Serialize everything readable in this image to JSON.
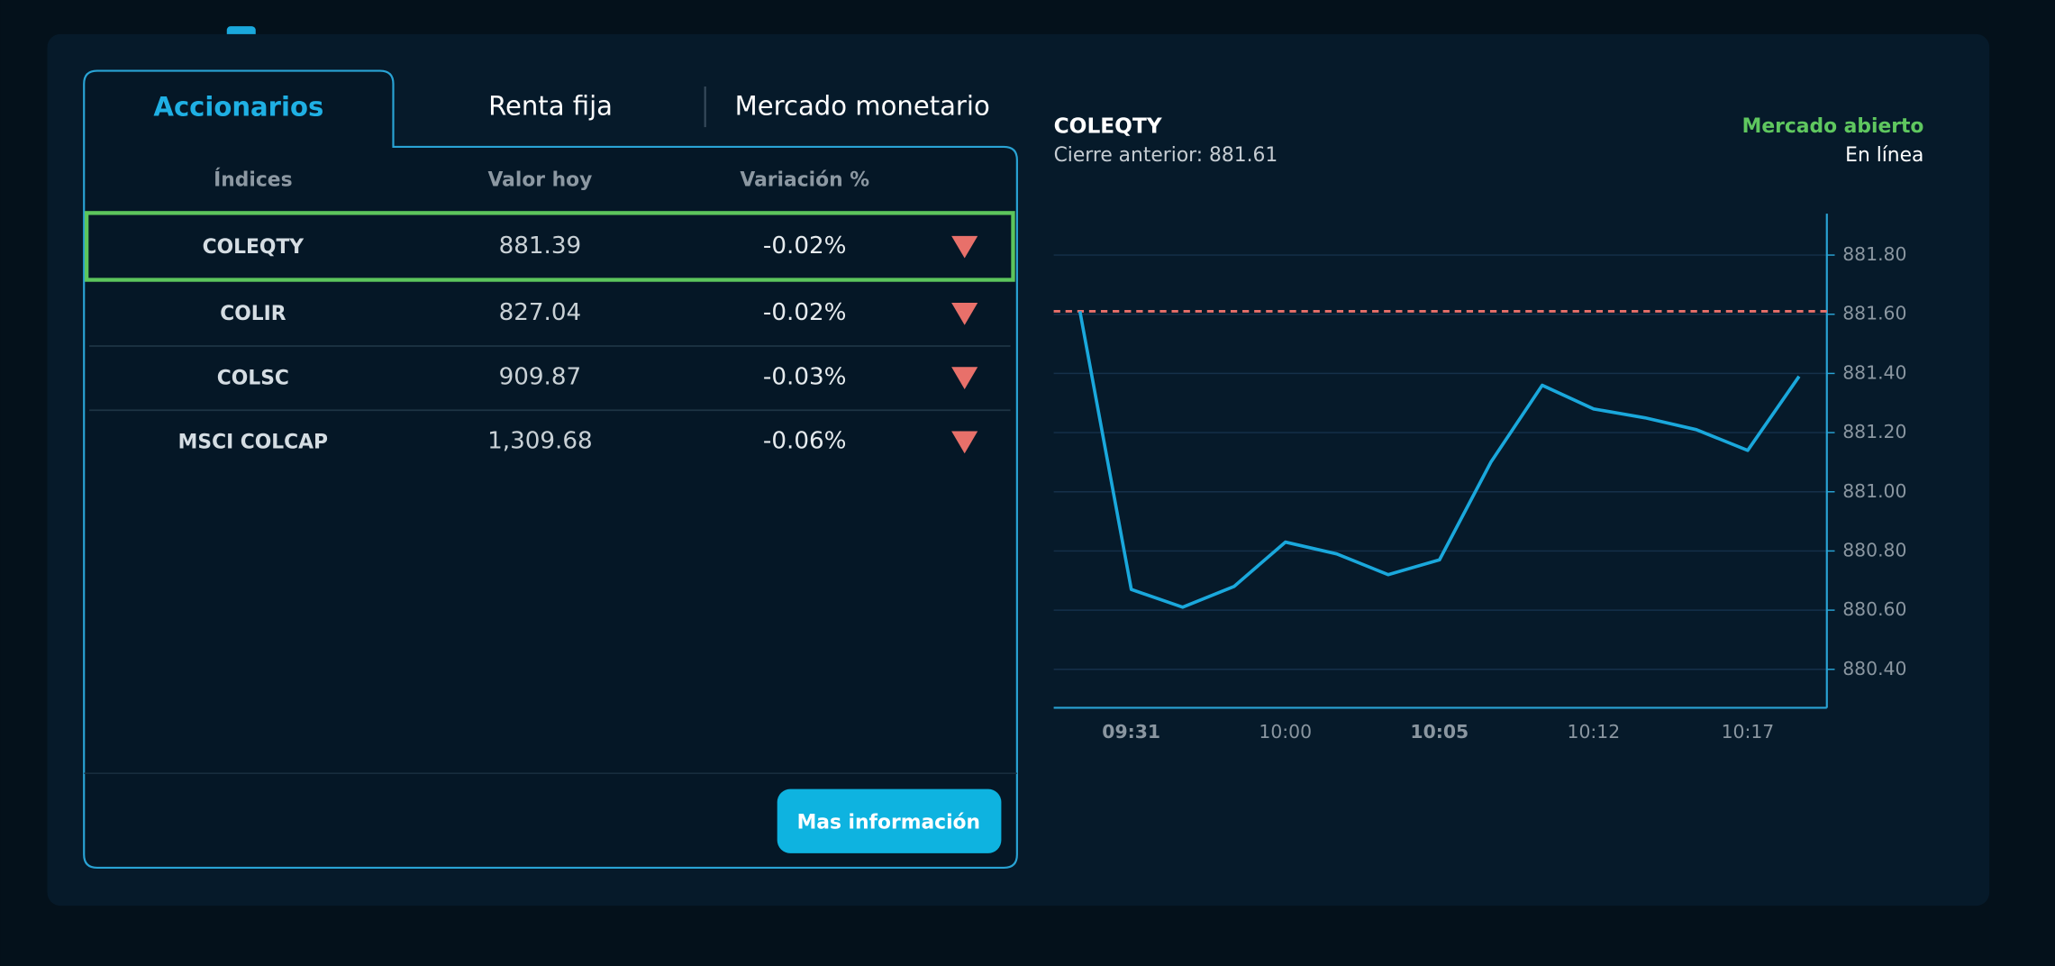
{
  "tabs": [
    "Accionarios",
    "Renta fija",
    "Mercado monetario"
  ],
  "table": {
    "headers": [
      "Índices",
      "Valor hoy",
      "Variación %"
    ],
    "rows": [
      [
        "COLEQTY",
        "881.39",
        "-0.02%"
      ],
      [
        "COLIR",
        "827.04",
        "-0.02%"
      ],
      [
        "COLSC",
        "909.87",
        "-0.03%"
      ],
      [
        "MSCI COLCAP",
        "1,309.68",
        "-0.06%"
      ]
    ]
  },
  "button": "Mas información",
  "chart_data": {
    "type": "line",
    "title": "COLEQTY",
    "subtitle": "Cierre anterior: 881.61",
    "status": "Mercado abierto",
    "connection": "En línea",
    "categories": [
      null,
      "09:31",
      null,
      null,
      "10:00",
      null,
      null,
      "10:05",
      null,
      null,
      "10:12",
      null,
      null,
      "10:17",
      null
    ],
    "values": [
      881.61,
      880.67,
      880.61,
      880.68,
      880.83,
      880.79,
      880.72,
      880.77,
      881.1,
      881.36,
      881.28,
      881.25,
      881.21,
      881.14,
      881.39
    ],
    "color": "#1aa8dc",
    "reference_line": 881.61,
    "reference_color": "#e8706a",
    "ylim": [
      880.27,
      881.94
    ],
    "yticks": [
      {
        "value": 880.4,
        "label": "880.40"
      },
      {
        "value": 880.6,
        "label": "880.60"
      },
      {
        "value": 880.8,
        "label": "880.80"
      },
      {
        "value": 881.0,
        "label": "881.00"
      },
      {
        "value": 881.2,
        "label": "881.20"
      },
      {
        "value": 881.4,
        "label": "881.40"
      },
      {
        "value": 881.6,
        "label": "881.60"
      },
      {
        "value": 881.8,
        "label": "881.80"
      }
    ],
    "grid": true
  }
}
